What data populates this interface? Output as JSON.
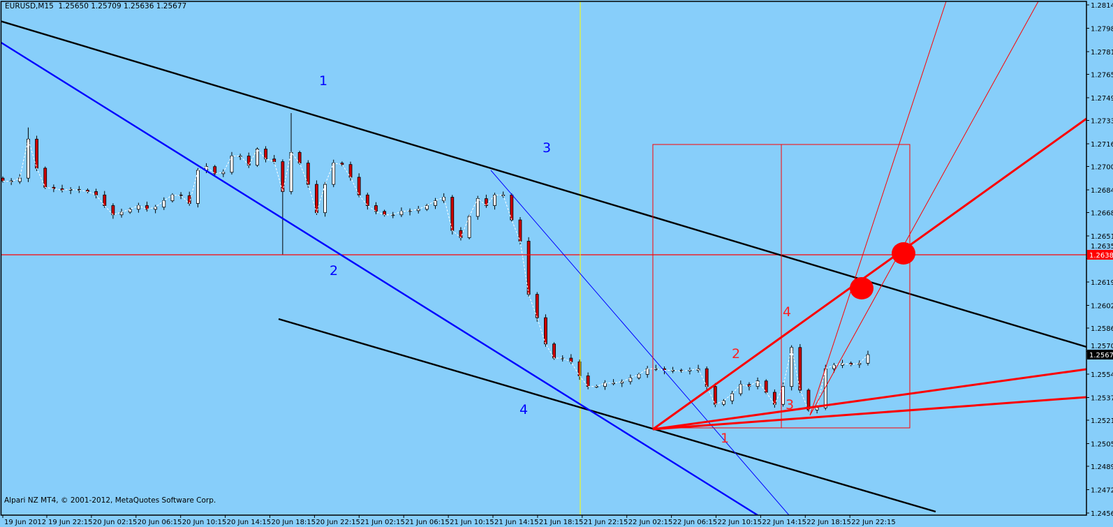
{
  "header": {
    "symbol_line": "EURUSD,M15  1.25650 1.25709 1.25636 1.25677"
  },
  "footer": {
    "copyright": "Alpari NZ MT4, © 2001-2012, MetaQuotes Software Corp."
  },
  "colors": {
    "background": "#87CEFA",
    "bull_body": "#ffffff",
    "bear_body": "#cc0000",
    "trendline": "#000000",
    "blue_line": "#0000ff",
    "red_objects": "#ff0000",
    "vertical_line": "#ffff00",
    "zigzag": "#ffffff"
  },
  "chart_data": {
    "type": "candlestick",
    "symbol": "EURUSD",
    "timeframe": "M15",
    "ylim": [
      1.2456,
      1.28145
    ],
    "grid": false,
    "y_ticks": [
      "1.28145",
      "1.27980",
      "1.27815",
      "1.27655",
      "1.27490",
      "1.27330",
      "1.27165",
      "1.27005",
      "1.26840",
      "1.26680",
      "1.26515",
      "1.26355",
      "1.26190",
      "1.26025",
      "1.25865",
      "1.25700",
      "1.25540",
      "1.25375",
      "1.25215",
      "1.25050",
      "1.24890",
      "1.24725",
      "1.24560"
    ],
    "x_ticks": [
      "19 Jun 2012",
      "19 Jun 22:15",
      "20 Jun 02:15",
      "20 Jun 06:15",
      "20 Jun 10:15",
      "20 Jun 14:15",
      "20 Jun 18:15",
      "20 Jun 22:15",
      "21 Jun 02:15",
      "21 Jun 06:15",
      "21 Jun 10:15",
      "21 Jun 14:15",
      "21 Jun 18:15",
      "21 Jun 22:15",
      "22 Jun 02:15",
      "22 Jun 06:15",
      "22 Jun 10:15",
      "22 Jun 14:15",
      "22 Jun 18:15",
      "22 Jun 22:15"
    ],
    "last_bar": {
      "open": 1.2565,
      "high": 1.25709,
      "low": 1.25636,
      "close": 1.25677
    },
    "close": [
      1.26903,
      1.26898,
      1.26923,
      1.27198,
      1.26993,
      1.26858,
      1.26848,
      1.26838,
      1.26843,
      1.26838,
      1.26828,
      1.26804,
      1.26729,
      1.26664,
      1.26683,
      1.26703,
      1.26729,
      1.26703,
      1.26718,
      1.26763,
      1.26804,
      1.26799,
      1.26744,
      1.26978,
      1.27004,
      1.26954,
      1.26964,
      1.27079,
      1.27079,
      1.27014,
      1.27128,
      1.27058,
      1.27039,
      1.26828,
      1.27104,
      1.27029,
      1.26879,
      1.26679,
      1.26879,
      1.27029,
      1.27019,
      1.26929,
      1.26804,
      1.26729,
      1.26688,
      1.26664,
      1.26664,
      1.26688,
      1.26693,
      1.26703,
      1.26729,
      1.26763,
      1.26788,
      1.26553,
      1.26503,
      1.26653,
      1.26778,
      1.26729,
      1.26804,
      1.26804,
      1.26628,
      1.26478,
      1.26103,
      1.25938,
      1.25753,
      1.25653,
      1.25653,
      1.25627,
      1.25528,
      1.25453,
      1.25453,
      1.25477,
      1.25477,
      1.25487,
      1.25513,
      1.25538,
      1.25578,
      1.25578,
      1.25567,
      1.25567,
      1.25562,
      1.25567,
      1.25578,
      1.25453,
      1.25327,
      1.25352,
      1.25402,
      1.25467,
      1.25453,
      1.25492,
      1.25412,
      1.25327,
      1.25453,
      1.25728,
      1.25427,
      1.25287,
      1.25302,
      1.25578,
      1.25603,
      1.25617,
      1.25608,
      1.25617,
      1.25677
    ],
    "wick_extremes": [
      {
        "index": 3,
        "high": 1.2728
      },
      {
        "index": 33,
        "low": 1.26382
      },
      {
        "index": 34,
        "high": 1.27382
      }
    ],
    "price_labels": {
      "horizontal_line": "1.26382",
      "bid": "1.25677"
    }
  },
  "annotations": {
    "blue_labels": [
      "1",
      "2",
      "3",
      "4"
    ],
    "red_labels": [
      "1",
      "2",
      "3",
      "4"
    ]
  }
}
